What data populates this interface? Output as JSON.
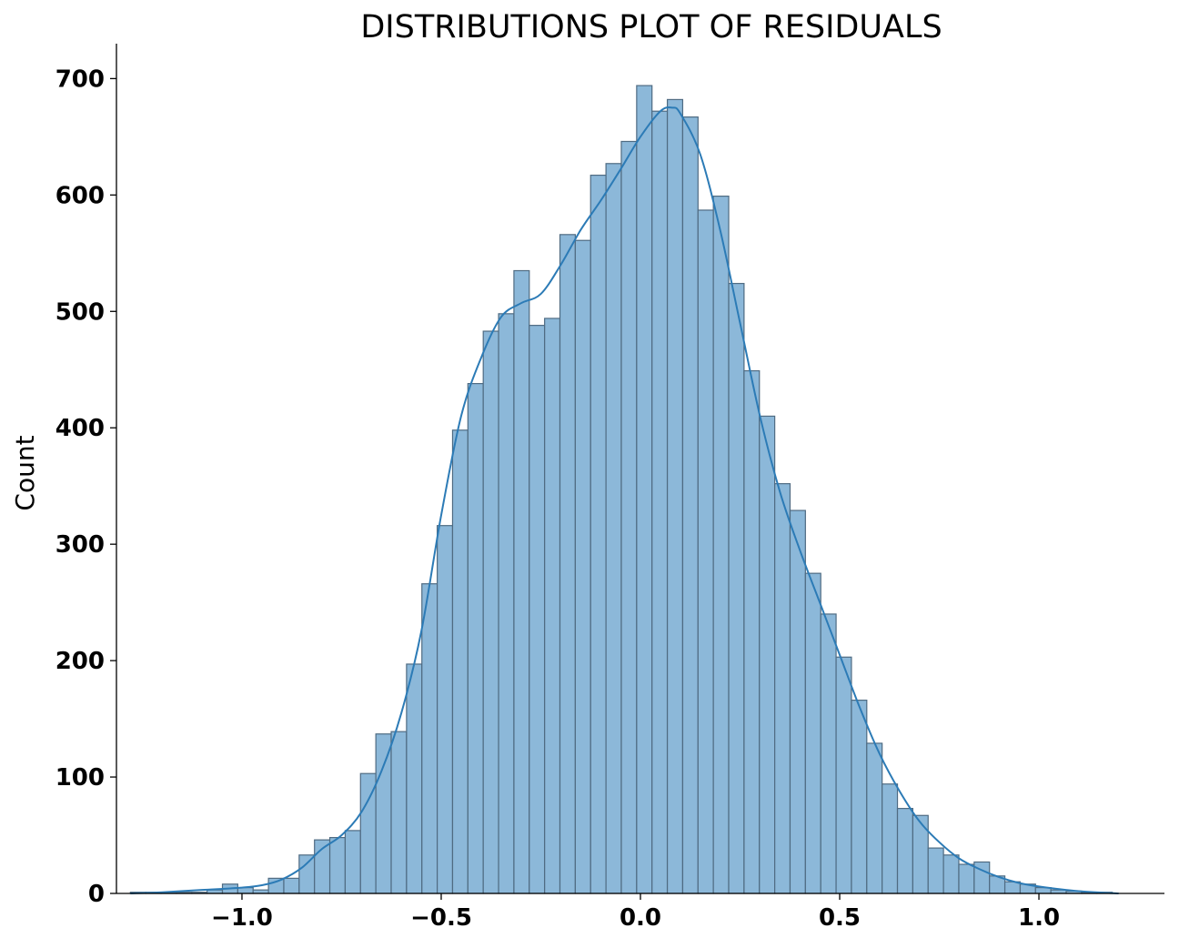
{
  "chart_data": {
    "type": "bar",
    "subtype": "histogram-with-kde",
    "title": "DISTRIBUTIONS PLOT OF RESIDUALS",
    "xlabel": "",
    "ylabel": "Count",
    "xlim": [
      -1.315,
      1.315
    ],
    "ylim": [
      0,
      730
    ],
    "x_ticks": [
      -1.0,
      -0.5,
      0.0,
      0.5,
      1.0
    ],
    "x_tick_labels": [
      "−1.0",
      "−0.5",
      "0.0",
      "0.5",
      "1.0"
    ],
    "y_ticks": [
      0,
      100,
      200,
      300,
      400,
      500,
      600,
      700
    ],
    "y_tick_labels": [
      "0",
      "100",
      "200",
      "300",
      "400",
      "500",
      "600",
      "700"
    ],
    "bin_start": -1.28,
    "bin_width": 0.0385,
    "counts": [
      1,
      1,
      1,
      1,
      1,
      3,
      8,
      5,
      3,
      13,
      13,
      33,
      46,
      48,
      54,
      103,
      137,
      139,
      197,
      266,
      316,
      398,
      438,
      483,
      498,
      535,
      488,
      494,
      566,
      561,
      617,
      627,
      646,
      694,
      672,
      682,
      667,
      587,
      599,
      524,
      449,
      410,
      352,
      329,
      275,
      240,
      203,
      166,
      129,
      94,
      73,
      67,
      39,
      33,
      25,
      27,
      15,
      10,
      8,
      5,
      3,
      2,
      1,
      1
    ],
    "kde": {
      "x": [
        -1.28,
        -1.2,
        -1.1,
        -1.0,
        -0.95,
        -0.9,
        -0.85,
        -0.8,
        -0.75,
        -0.7,
        -0.65,
        -0.6,
        -0.55,
        -0.5,
        -0.45,
        -0.4,
        -0.35,
        -0.3,
        -0.25,
        -0.2,
        -0.15,
        -0.1,
        -0.05,
        0.0,
        0.05,
        0.08,
        0.1,
        0.15,
        0.2,
        0.25,
        0.3,
        0.35,
        0.4,
        0.45,
        0.5,
        0.55,
        0.6,
        0.65,
        0.7,
        0.75,
        0.8,
        0.85,
        0.9,
        0.95,
        1.0,
        1.1,
        1.2
      ],
      "y": [
        0,
        1,
        3,
        5,
        7,
        12,
        22,
        38,
        50,
        70,
        105,
        155,
        225,
        325,
        410,
        460,
        495,
        507,
        515,
        540,
        570,
        595,
        622,
        650,
        672,
        675,
        670,
        635,
        570,
        490,
        410,
        345,
        295,
        250,
        205,
        160,
        120,
        88,
        62,
        44,
        30,
        21,
        14,
        9,
        6,
        2,
        0
      ]
    },
    "bar_color": "#8cb8d9",
    "edge_color": "#4f6b82",
    "line_color": "#2c7bb6",
    "grid": false,
    "legend": null
  }
}
